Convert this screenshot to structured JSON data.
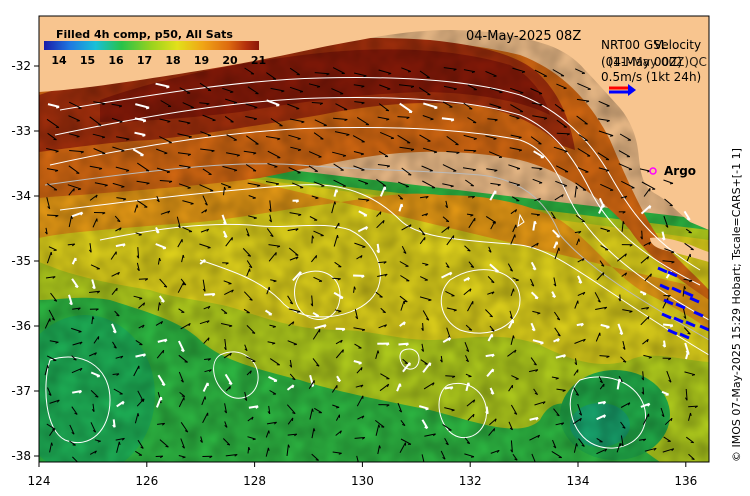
{
  "map": {
    "date_label": "04-May-2025 08Z",
    "colorbar_title": "Filled 4h comp, p50, All Sats",
    "colorbar_ticks": [
      "14",
      "15",
      "16",
      "17",
      "18",
      "19",
      "20",
      "21"
    ],
    "legend_line1": "NRT00 GSL",
    "legend_line1_overlay": "Velocity",
    "legend_line2": "(04-May 00Z)",
    "legend_line2_overlay": "(11-May 00Z)QC",
    "legend_scale": "0.5m/s (1kt 24h)",
    "argo_label": "Argo",
    "credit": "© IMOS 07-May-2025 15:29 Hobart; Tscale=CARS+[-1 1]",
    "x_ticks": [
      "124",
      "126",
      "128",
      "130",
      "132",
      "134",
      "136"
    ],
    "y_ticks": [
      "-32",
      "-33",
      "-34",
      "-35",
      "-36",
      "-37",
      "-38"
    ],
    "colors": {
      "land": "#f8c58f",
      "colorbar": [
        "#1a1aa8",
        "#1f78e0",
        "#19c0d8",
        "#27c24a",
        "#9ad21e",
        "#e2e01a",
        "#f0a416",
        "#dd6a10",
        "#b4300c",
        "#8a1808"
      ],
      "argo": "#ff00ff",
      "vector_scale": "#ff0000",
      "vector_scale_qc": "#0000ff"
    }
  }
}
